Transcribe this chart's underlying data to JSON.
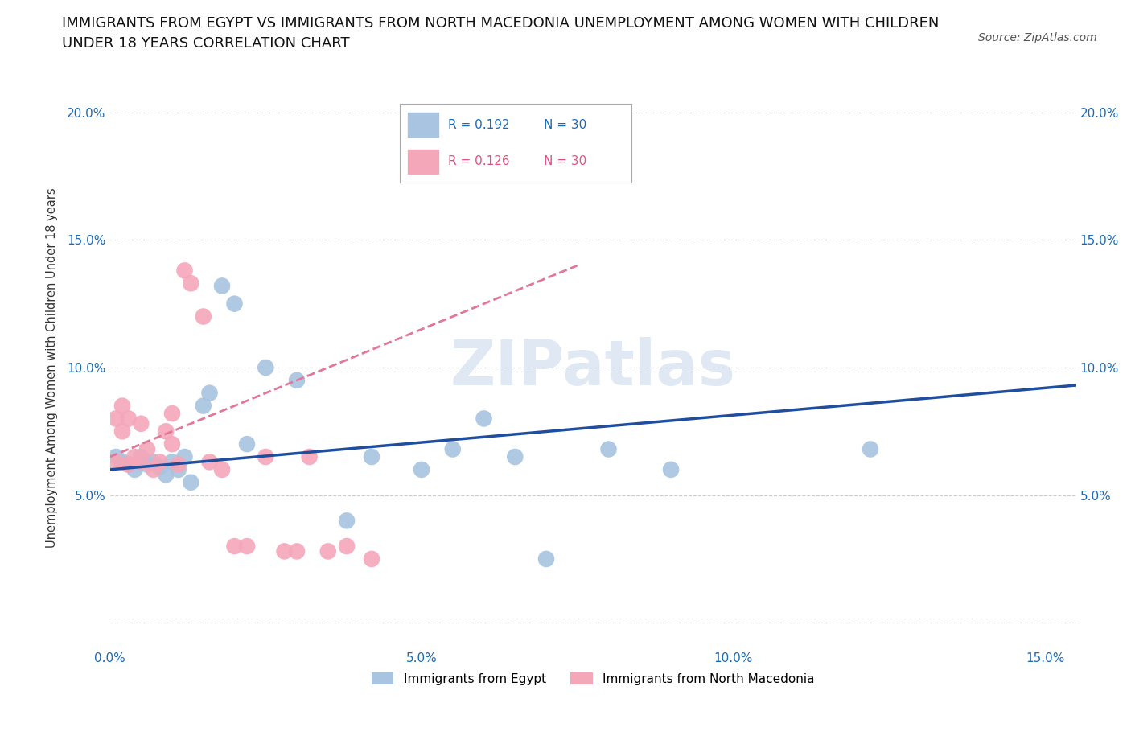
{
  "title_line1": "IMMIGRANTS FROM EGYPT VS IMMIGRANTS FROM NORTH MACEDONIA UNEMPLOYMENT AMONG WOMEN WITH CHILDREN",
  "title_line2": "UNDER 18 YEARS CORRELATION CHART",
  "source": "Source: ZipAtlas.com",
  "ylabel": "Unemployment Among Women with Children Under 18 years",
  "xlim": [
    0.0,
    0.155
  ],
  "ylim": [
    -0.01,
    0.21
  ],
  "xticks": [
    0.0,
    0.05,
    0.1,
    0.15
  ],
  "yticks": [
    0.0,
    0.05,
    0.1,
    0.15,
    0.2
  ],
  "xticklabels": [
    "0.0%",
    "5.0%",
    "10.0%",
    "15.0%"
  ],
  "yticklabels": [
    "",
    "5.0%",
    "10.0%",
    "15.0%",
    "20.0%"
  ],
  "R_egypt": 0.192,
  "N_egypt": 30,
  "R_macedonia": 0.126,
  "N_macedonia": 30,
  "egypt_color": "#a8c4e0",
  "macedonia_color": "#f4a7b9",
  "egypt_line_color": "#1f4e9e",
  "macedonia_line_color": "#e07898",
  "axis_color": "#1a6bb5",
  "watermark": "ZIPatlas",
  "watermark_color": "#c8d8ea",
  "title_fontsize": 13,
  "axis_label_fontsize": 10.5,
  "tick_fontsize": 11,
  "legend_fontsize": 11,
  "egypt_x": [
    0.001,
    0.002,
    0.003,
    0.004,
    0.005,
    0.006,
    0.007,
    0.008,
    0.009,
    0.01,
    0.011,
    0.012,
    0.013,
    0.015,
    0.016,
    0.018,
    0.02,
    0.022,
    0.025,
    0.03,
    0.038,
    0.042,
    0.05,
    0.055,
    0.06,
    0.065,
    0.07,
    0.08,
    0.09,
    0.122
  ],
  "egypt_y": [
    0.065,
    0.063,
    0.062,
    0.06,
    0.065,
    0.062,
    0.063,
    0.061,
    0.058,
    0.063,
    0.06,
    0.065,
    0.055,
    0.085,
    0.09,
    0.132,
    0.125,
    0.07,
    0.1,
    0.095,
    0.04,
    0.065,
    0.06,
    0.068,
    0.08,
    0.065,
    0.025,
    0.068,
    0.06,
    0.068
  ],
  "macedonia_x": [
    0.001,
    0.001,
    0.002,
    0.002,
    0.003,
    0.003,
    0.004,
    0.005,
    0.005,
    0.006,
    0.007,
    0.008,
    0.009,
    0.01,
    0.01,
    0.011,
    0.012,
    0.013,
    0.015,
    0.016,
    0.018,
    0.02,
    0.022,
    0.025,
    0.028,
    0.03,
    0.032,
    0.035,
    0.038,
    0.042
  ],
  "macedonia_y": [
    0.063,
    0.08,
    0.075,
    0.085,
    0.062,
    0.08,
    0.065,
    0.063,
    0.078,
    0.068,
    0.06,
    0.063,
    0.075,
    0.082,
    0.07,
    0.062,
    0.138,
    0.133,
    0.12,
    0.063,
    0.06,
    0.03,
    0.03,
    0.065,
    0.028,
    0.028,
    0.065,
    0.028,
    0.03,
    0.025
  ]
}
